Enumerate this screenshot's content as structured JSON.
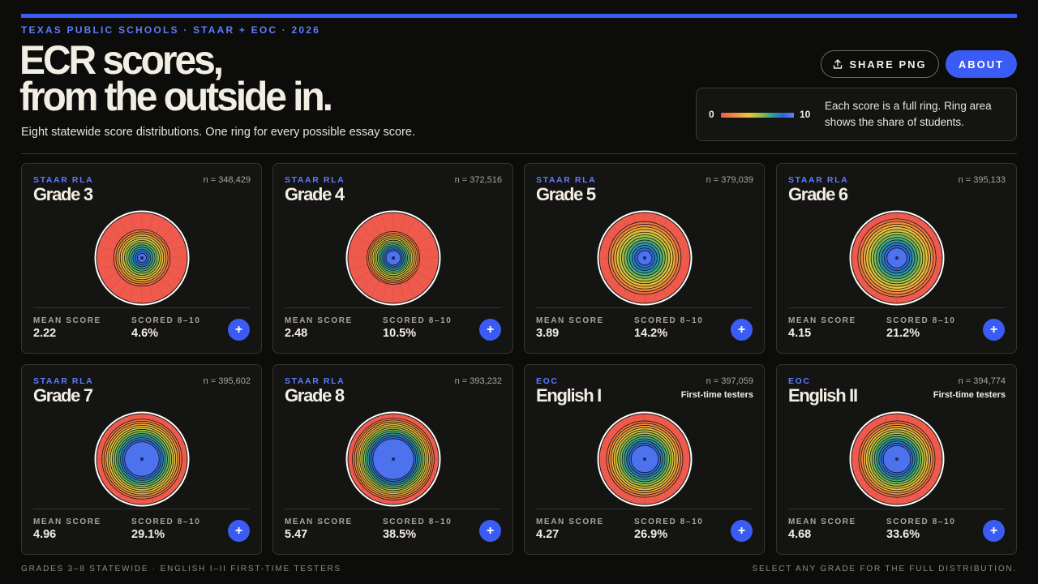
{
  "header": {
    "eyebrow": "TEXAS PUBLIC SCHOOLS · STAAR + EOC · 2026",
    "title_line1": "ECR scores,",
    "title_line2": "from the outside in.",
    "subtitle": "Eight statewide score distributions. One ring for every possible essay score.",
    "share_label": "SHARE PNG",
    "about_label": "ABOUT"
  },
  "legend": {
    "min": "0",
    "max": "10",
    "text": "Each score is a full ring. Ring area shows the share of students."
  },
  "labels": {
    "mean": "MEAN SCORE",
    "scored": "SCORED 8–10",
    "expand": "+"
  },
  "colors": {
    "accent": "#3a5cf5",
    "scale": [
      "#ef5a4d",
      "#f2913a",
      "#e9c73c",
      "#8fbf47",
      "#2aa39a",
      "#2a66d8",
      "#6a7cff"
    ]
  },
  "cards": [
    {
      "kicker": "STAAR RLA",
      "name": "Grade 3",
      "n": "n = 348,429",
      "note": "",
      "mean": "2.22",
      "scored": "4.6%"
    },
    {
      "kicker": "STAAR RLA",
      "name": "Grade 4",
      "n": "n = 372,516",
      "note": "",
      "mean": "2.48",
      "scored": "10.5%"
    },
    {
      "kicker": "STAAR RLA",
      "name": "Grade 5",
      "n": "n = 379,039",
      "note": "",
      "mean": "3.89",
      "scored": "14.2%"
    },
    {
      "kicker": "STAAR RLA",
      "name": "Grade 6",
      "n": "n = 395,133",
      "note": "",
      "mean": "4.15",
      "scored": "21.2%"
    },
    {
      "kicker": "STAAR RLA",
      "name": "Grade 7",
      "n": "n = 395,602",
      "note": "",
      "mean": "4.96",
      "scored": "29.1%"
    },
    {
      "kicker": "STAAR RLA",
      "name": "Grade 8",
      "n": "n = 393,232",
      "note": "",
      "mean": "5.47",
      "scored": "38.5%"
    },
    {
      "kicker": "EOC",
      "name": "English I",
      "n": "n = 397,059",
      "note": "First-time testers",
      "mean": "4.27",
      "scored": "26.9%"
    },
    {
      "kicker": "EOC",
      "name": "English II",
      "n": "n = 394,774",
      "note": "First-time testers",
      "mean": "4.68",
      "scored": "33.6%"
    }
  ],
  "footer": {
    "left": "GRADES 3–8 STATEWIDE · ENGLISH I–II FIRST-TIME TESTERS",
    "right": "SELECT ANY GRADE FOR THE FULL DISTRIBUTION."
  }
}
